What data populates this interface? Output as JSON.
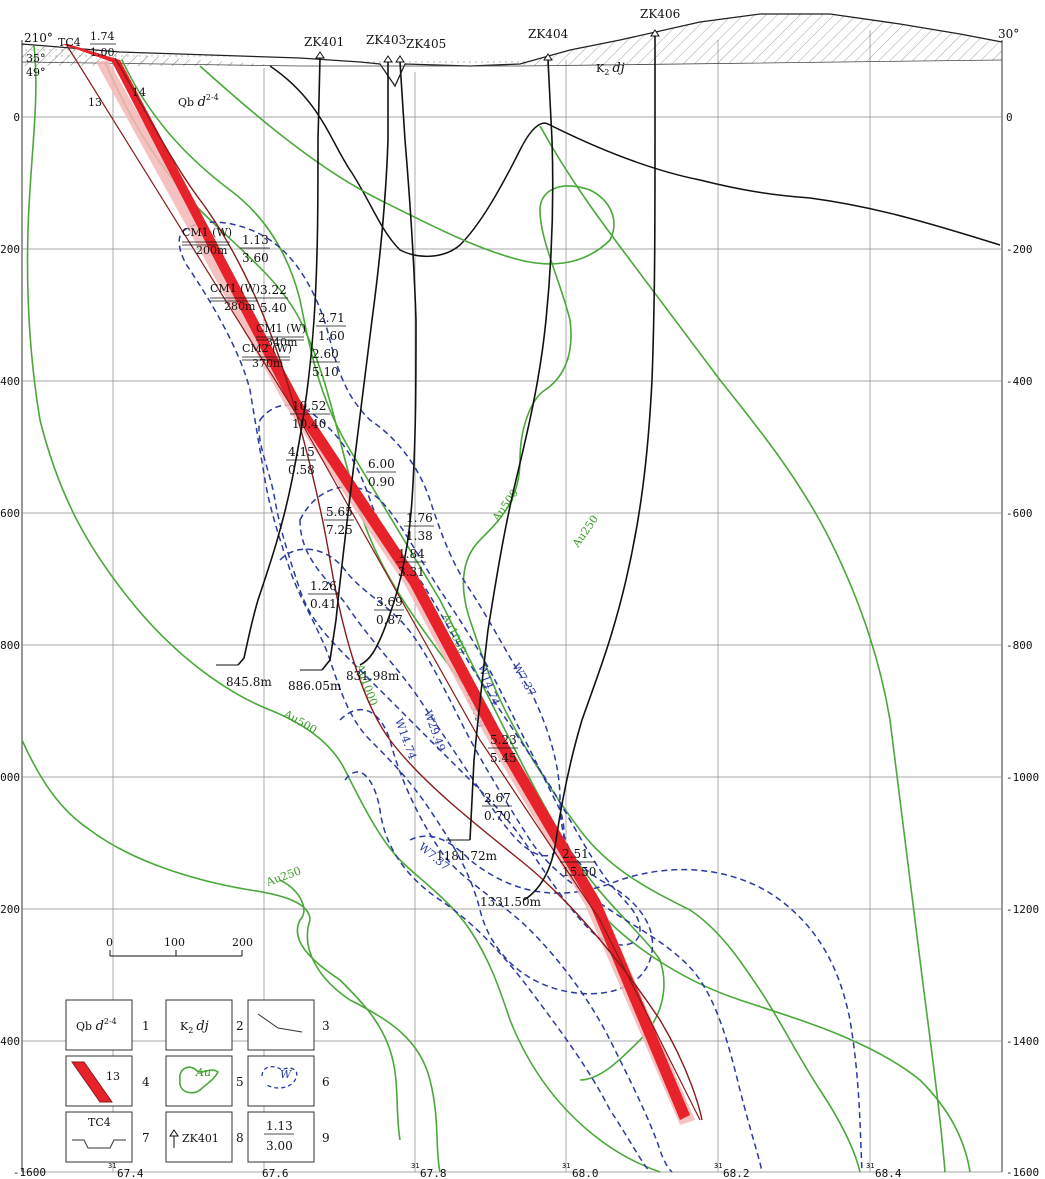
{
  "orientation": {
    "left": "210°",
    "right": "30°",
    "dip_a": "35°",
    "dip_b": "49°"
  },
  "elevation_labels": [
    "0",
    "-200",
    "-400",
    "-600",
    "-800",
    "-1000",
    "-1200",
    "-1400",
    "-1600"
  ],
  "easting_labels": [
    "67.4",
    "67.6",
    "67.8",
    "68.0",
    "68.2",
    "68.4"
  ],
  "easting_prefix": "31",
  "trench": {
    "name": "TC4",
    "num": "1.74",
    "den": "1.00"
  },
  "veins": [
    "13",
    "14"
  ],
  "formations": {
    "qb": "Qb",
    "qb_sup": "2-4",
    "k2": "K",
    "k2_sub": "2",
    "dj": "dj"
  },
  "boreholes": [
    {
      "name": "ZK401",
      "depth": "845.8m"
    },
    {
      "name": "ZK403",
      "depth": "886.05m"
    },
    {
      "name": "ZK405",
      "depth": "831.98m"
    },
    {
      "name": "ZK404",
      "depth": "1181.72m"
    },
    {
      "name": "ZK406",
      "depth": "1331.50m"
    }
  ],
  "adits": [
    {
      "name": "CM1 (W)",
      "level": "200m"
    },
    {
      "name": "CM1 (W)",
      "level": "280m"
    },
    {
      "name": "CM1 (W)",
      "level": "340m"
    },
    {
      "name": "CM2 (W)",
      "level": "370m"
    }
  ],
  "intercepts": [
    {
      "num": "1.13",
      "den": "3.60"
    },
    {
      "num": "3.22",
      "den": "5.40"
    },
    {
      "num": "2.71",
      "den": "1.60"
    },
    {
      "num": "2.60",
      "den": "5.10"
    },
    {
      "num": "10.52",
      "den": "10.40"
    },
    {
      "num": "4.15",
      "den": "0.58"
    },
    {
      "num": "6.00",
      "den": "0.90"
    },
    {
      "num": "5.65",
      "den": "7.25"
    },
    {
      "num": "1.76",
      "den": "1.38"
    },
    {
      "num": "1.84",
      "den": "3.31"
    },
    {
      "num": "1.26",
      "den": "0.41"
    },
    {
      "num": "3.69",
      "den": "0.87"
    },
    {
      "num": "5.23",
      "den": "5.45"
    },
    {
      "num": "2.67",
      "den": "0.70"
    },
    {
      "num": "2.51",
      "den": "15.50"
    }
  ],
  "au_contours": [
    "Au500",
    "Au250",
    "Au1000",
    "Au1000",
    "Au500",
    "Au250"
  ],
  "w_contours": [
    "W7.37",
    "W14.74",
    "W29.49",
    "W14.74",
    "W29.49",
    "W7.37"
  ],
  "scale": {
    "ticks": [
      "0",
      "100",
      "200"
    ]
  },
  "legend": [
    {
      "num": "1",
      "box": "Qb d"
    },
    {
      "num": "2",
      "box": "K2 dj"
    },
    {
      "num": "3",
      "box": ""
    },
    {
      "num": "4",
      "box": "13"
    },
    {
      "num": "5",
      "box": "Au"
    },
    {
      "num": "6",
      "box": "W"
    },
    {
      "num": "7",
      "box": "TC4"
    },
    {
      "num": "8",
      "box": "ZK401"
    },
    {
      "num": "9",
      "box": "1.13/3.00"
    }
  ],
  "colors": {
    "vein": "#e8222a",
    "vein_halo": "#f4b6b6",
    "vein_edge": "#8a1a1a",
    "au": "#4aa83a",
    "w": "#2a3aa0",
    "grid": "#8a8a8a",
    "bg": "#ffffff"
  }
}
